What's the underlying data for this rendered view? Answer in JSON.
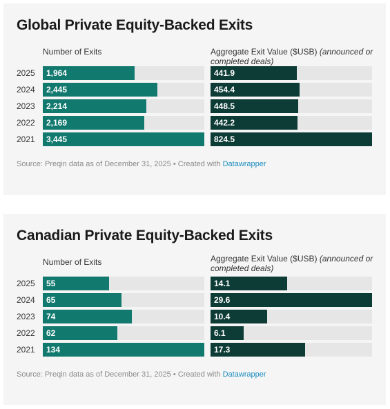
{
  "chart_data": [
    {
      "type": "bar",
      "title": "Global Private Equity-Backed Exits",
      "categories": [
        "2025",
        "2024",
        "2023",
        "2022",
        "2021"
      ],
      "series": [
        {
          "name": "Number of Exits",
          "values": [
            1964,
            2445,
            2214,
            2169,
            3445
          ],
          "labels": [
            "1,964",
            "2,445",
            "2,214",
            "2,169",
            "3,445"
          ]
        },
        {
          "name": "Aggregate Exit Value ($USB)",
          "name_note": "(announced or completed deals)",
          "values": [
            441.9,
            454.4,
            448.5,
            442.2,
            824.5
          ],
          "labels": [
            "441.9",
            "454.4",
            "448.5",
            "442.2",
            "824.5"
          ]
        }
      ],
      "source_prefix": "Source: Preqin data as of December 31, 2025 • Created with ",
      "source_link": "Datawrapper"
    },
    {
      "type": "bar",
      "title": "Canadian Private Equity-Backed Exits",
      "categories": [
        "2025",
        "2024",
        "2023",
        "2022",
        "2021"
      ],
      "series": [
        {
          "name": "Number of Exits",
          "values": [
            55,
            65,
            74,
            62,
            134
          ],
          "labels": [
            "55",
            "65",
            "74",
            "62",
            "134"
          ]
        },
        {
          "name": "Aggregate Exit Value ($USB)",
          "name_note": "(announced or completed deals)",
          "values": [
            14.1,
            29.6,
            10.4,
            6.1,
            17.3
          ],
          "labels": [
            "14.1",
            "29.6",
            "10.4",
            "6.1",
            "17.3"
          ]
        }
      ],
      "source_prefix": "Source: Preqin data as of December 31, 2025 • Created with ",
      "source_link": "Datawrapper"
    }
  ],
  "colors": {
    "count_bar": "#12796f",
    "value_bar": "#0d3b36",
    "track": "#e6e6e6",
    "link": "#1b8dbf"
  }
}
